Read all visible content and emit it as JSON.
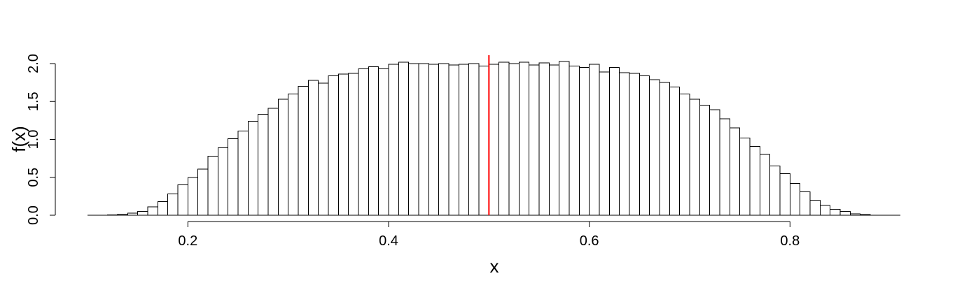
{
  "chart_data": {
    "type": "bar",
    "subtype": "histogram",
    "title": "",
    "xlabel": "x",
    "ylabel": "f(x)",
    "xlim": [
      0.1,
      0.91
    ],
    "ylim": [
      0,
      2.0
    ],
    "xticks": [
      0.2,
      0.4,
      0.6,
      0.8
    ],
    "xtick_labels": [
      "0.2",
      "0.4",
      "0.6",
      "0.8"
    ],
    "yticks": [
      0.0,
      0.5,
      1.0,
      1.5,
      2.0
    ],
    "ytick_labels": [
      "0.0",
      "0.5",
      "1.0",
      "1.5",
      "2.0"
    ],
    "grid": false,
    "bin_start": 0.1,
    "bin_width": 0.01,
    "values": [
      0.0,
      0.0,
      0.005,
      0.012,
      0.03,
      0.05,
      0.11,
      0.18,
      0.28,
      0.4,
      0.5,
      0.61,
      0.78,
      0.89,
      1.01,
      1.11,
      1.24,
      1.33,
      1.41,
      1.53,
      1.6,
      1.7,
      1.78,
      1.74,
      1.84,
      1.86,
      1.87,
      1.93,
      1.96,
      1.93,
      1.99,
      2.02,
      2.0,
      2.0,
      1.99,
      2.0,
      1.98,
      1.99,
      2.0,
      1.97,
      1.99,
      2.02,
      2.0,
      2.02,
      1.98,
      2.01,
      1.98,
      2.03,
      1.97,
      1.95,
      1.99,
      1.89,
      1.95,
      1.88,
      1.87,
      1.84,
      1.79,
      1.75,
      1.69,
      1.6,
      1.53,
      1.45,
      1.39,
      1.27,
      1.15,
      1.02,
      0.91,
      0.8,
      0.65,
      0.55,
      0.42,
      0.31,
      0.2,
      0.13,
      0.08,
      0.05,
      0.02,
      0.01,
      0.0,
      0.0,
      0.0
    ],
    "vline": {
      "x": 0.5,
      "color": "#ff0000"
    }
  }
}
